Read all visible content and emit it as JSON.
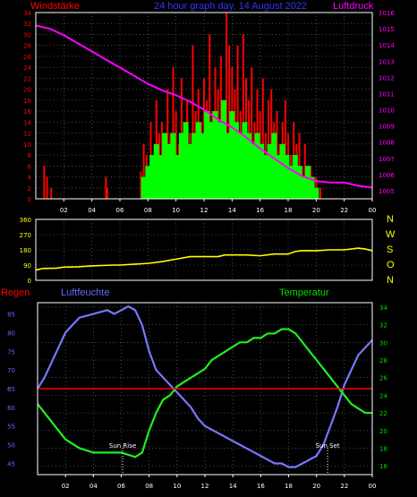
{
  "title": "24 hour graph day, 14 August 2022",
  "colors": {
    "wind": "#ff0000",
    "gust": "#00ff00",
    "pressure": "#ff00ff",
    "direction": "#ffff00",
    "humidity": "#7777ff",
    "temperature": "#22ee22",
    "rain": "#ff0000",
    "axis": "#ffffff",
    "grid": "#777777",
    "tick_wind": "#ff0000",
    "tick_humidity": "#6666ff",
    "tick_temperature": "#00dd00",
    "compass": "#ffff00"
  },
  "labels": {
    "wind": "Windstärke",
    "pressure": "Luftdruck",
    "rain": "Regen",
    "humidity": "Luftfeuchte",
    "temperature": "Temperatur",
    "sunrise": "Sun Rise",
    "sunset": "Sun Set",
    "rain_zero": "0"
  },
  "compass": [
    "N",
    "W",
    "S",
    "O",
    "N"
  ],
  "chart_data": [
    {
      "type": "bar",
      "name": "wind",
      "x_ticks": [
        "02",
        "04",
        "06",
        "08",
        "10",
        "12",
        "14",
        "16",
        "18",
        "20",
        "22",
        "00"
      ],
      "y_left_ticks": [
        0,
        2,
        4,
        6,
        8,
        10,
        12,
        14,
        16,
        18,
        20,
        22,
        24,
        26,
        28,
        30,
        32,
        34
      ],
      "y_left_range": [
        0,
        34
      ],
      "y_right_ticks": [
        1005,
        1006,
        1007,
        1008,
        1009,
        1010,
        1011,
        1012,
        1013,
        1014,
        1015,
        1016
      ],
      "y_right_range": [
        1004.5,
        1016
      ],
      "x_range": [
        0,
        24
      ],
      "wind_bars": [
        [
          0.6,
          6
        ],
        [
          0.8,
          4
        ],
        [
          1.1,
          2
        ],
        [
          5.0,
          4
        ],
        [
          5.1,
          2
        ],
        [
          7.5,
          5
        ],
        [
          7.7,
          10
        ],
        [
          7.9,
          8
        ],
        [
          8.2,
          14
        ],
        [
          8.4,
          6
        ],
        [
          8.6,
          18
        ],
        [
          8.8,
          12
        ],
        [
          9.0,
          14
        ],
        [
          9.2,
          8
        ],
        [
          9.4,
          20
        ],
        [
          9.6,
          12
        ],
        [
          9.8,
          24
        ],
        [
          10.0,
          16
        ],
        [
          10.2,
          10
        ],
        [
          10.4,
          22
        ],
        [
          10.6,
          14
        ],
        [
          10.8,
          18
        ],
        [
          11.0,
          12
        ],
        [
          11.2,
          28
        ],
        [
          11.4,
          16
        ],
        [
          11.6,
          20
        ],
        [
          11.8,
          14
        ],
        [
          12.0,
          22
        ],
        [
          12.2,
          18
        ],
        [
          12.4,
          30
        ],
        [
          12.6,
          16
        ],
        [
          12.8,
          24
        ],
        [
          13.0,
          20
        ],
        [
          13.2,
          26
        ],
        [
          13.4,
          18
        ],
        [
          13.6,
          34
        ],
        [
          13.8,
          28
        ],
        [
          14.0,
          24
        ],
        [
          14.2,
          20
        ],
        [
          14.4,
          28
        ],
        [
          14.6,
          16
        ],
        [
          14.8,
          30
        ],
        [
          15.0,
          22
        ],
        [
          15.2,
          18
        ],
        [
          15.4,
          24
        ],
        [
          15.6,
          14
        ],
        [
          15.8,
          20
        ],
        [
          16.0,
          16
        ],
        [
          16.2,
          22
        ],
        [
          16.4,
          12
        ],
        [
          16.6,
          18
        ],
        [
          16.8,
          20
        ],
        [
          17.0,
          14
        ],
        [
          17.2,
          16
        ],
        [
          17.4,
          10
        ],
        [
          17.6,
          14
        ],
        [
          17.8,
          18
        ],
        [
          18.0,
          12
        ],
        [
          18.2,
          8
        ],
        [
          18.4,
          14
        ],
        [
          18.6,
          10
        ],
        [
          18.8,
          12
        ],
        [
          19.0,
          6
        ],
        [
          19.2,
          10
        ],
        [
          19.4,
          4
        ],
        [
          19.6,
          6
        ],
        [
          19.8,
          2
        ],
        [
          20.0,
          4
        ],
        [
          20.3,
          2
        ]
      ],
      "gust_bars": [
        [
          7.7,
          4
        ],
        [
          8.0,
          6
        ],
        [
          8.3,
          8
        ],
        [
          8.6,
          10
        ],
        [
          8.9,
          8
        ],
        [
          9.2,
          12
        ],
        [
          9.5,
          10
        ],
        [
          9.8,
          12
        ],
        [
          10.1,
          8
        ],
        [
          10.4,
          12
        ],
        [
          10.7,
          14
        ],
        [
          11.0,
          10
        ],
        [
          11.3,
          12
        ],
        [
          11.6,
          14
        ],
        [
          11.9,
          12
        ],
        [
          12.2,
          16
        ],
        [
          12.5,
          14
        ],
        [
          12.8,
          16
        ],
        [
          13.1,
          14
        ],
        [
          13.4,
          18
        ],
        [
          13.7,
          12
        ],
        [
          14.0,
          16
        ],
        [
          14.3,
          14
        ],
        [
          14.6,
          12
        ],
        [
          14.9,
          14
        ],
        [
          15.2,
          12
        ],
        [
          15.5,
          10
        ],
        [
          15.8,
          12
        ],
        [
          16.1,
          10
        ],
        [
          16.4,
          8
        ],
        [
          16.7,
          10
        ],
        [
          17.0,
          12
        ],
        [
          17.3,
          8
        ],
        [
          17.6,
          10
        ],
        [
          17.9,
          8
        ],
        [
          18.2,
          6
        ],
        [
          18.5,
          8
        ],
        [
          18.8,
          6
        ],
        [
          19.1,
          4
        ],
        [
          19.4,
          6
        ],
        [
          19.7,
          4
        ],
        [
          20.0,
          2
        ]
      ],
      "pressure": [
        [
          0,
          1015.2
        ],
        [
          1,
          1015.0
        ],
        [
          2,
          1014.6
        ],
        [
          3,
          1014.1
        ],
        [
          4,
          1013.6
        ],
        [
          5,
          1013.1
        ],
        [
          6,
          1012.6
        ],
        [
          7,
          1012.1
        ],
        [
          8,
          1011.6
        ],
        [
          9,
          1011.2
        ],
        [
          10,
          1010.9
        ],
        [
          11,
          1010.5
        ],
        [
          12,
          1010.0
        ],
        [
          13,
          1009.4
        ],
        [
          14,
          1008.9
        ],
        [
          15,
          1008.3
        ],
        [
          16,
          1007.6
        ],
        [
          17,
          1007.0
        ],
        [
          18,
          1006.4
        ],
        [
          19,
          1005.9
        ],
        [
          20,
          1005.6
        ],
        [
          21,
          1005.5
        ],
        [
          22,
          1005.5
        ],
        [
          23,
          1005.3
        ],
        [
          24,
          1005.2
        ]
      ]
    },
    {
      "type": "line",
      "name": "direction",
      "y_ticks": [
        0,
        90,
        180,
        270,
        360
      ],
      "y_range": [
        0,
        360
      ],
      "x_range": [
        0,
        24
      ],
      "points": [
        [
          0,
          60
        ],
        [
          0.5,
          70
        ],
        [
          1.5,
          72
        ],
        [
          2.0,
          78
        ],
        [
          3.0,
          80
        ],
        [
          4.0,
          85
        ],
        [
          5.5,
          90
        ],
        [
          6.0,
          90
        ],
        [
          7.0,
          95
        ],
        [
          8.0,
          100
        ],
        [
          9.0,
          110
        ],
        [
          10.0,
          125
        ],
        [
          11.0,
          140
        ],
        [
          12.0,
          140
        ],
        [
          13.0,
          140
        ],
        [
          13.5,
          150
        ],
        [
          14.0,
          150
        ],
        [
          15.0,
          150
        ],
        [
          16.0,
          145
        ],
        [
          17.0,
          155
        ],
        [
          18.0,
          155
        ],
        [
          18.5,
          170
        ],
        [
          19.0,
          175
        ],
        [
          20.0,
          175
        ],
        [
          21.0,
          180
        ],
        [
          22.0,
          180
        ],
        [
          23.0,
          190
        ],
        [
          23.5,
          185
        ],
        [
          24.0,
          175
        ]
      ]
    },
    {
      "type": "line",
      "name": "humidity_temperature",
      "x_range": [
        0,
        24
      ],
      "y_left_ticks": [
        45,
        50,
        55,
        60,
        65,
        70,
        75,
        80,
        85
      ],
      "y_left_range": [
        42,
        88
      ],
      "y_right_ticks": [
        16,
        18,
        20,
        22,
        24,
        26,
        28,
        30,
        32,
        34
      ],
      "y_right_range": [
        15,
        34.5
      ],
      "humidity": [
        [
          0,
          65
        ],
        [
          0.5,
          68
        ],
        [
          1,
          72
        ],
        [
          1.5,
          76
        ],
        [
          2,
          80
        ],
        [
          2.5,
          82
        ],
        [
          3,
          84
        ],
        [
          4,
          85
        ],
        [
          5,
          86
        ],
        [
          5.5,
          85
        ],
        [
          6,
          86
        ],
        [
          6.5,
          87
        ],
        [
          7,
          86
        ],
        [
          7.5,
          82
        ],
        [
          8,
          75
        ],
        [
          8.5,
          70
        ],
        [
          9,
          68
        ],
        [
          9.5,
          66
        ],
        [
          10,
          64
        ],
        [
          10.5,
          62
        ],
        [
          11,
          60
        ],
        [
          11.5,
          57
        ],
        [
          12,
          55
        ],
        [
          12.5,
          54
        ],
        [
          13,
          53
        ],
        [
          13.5,
          52
        ],
        [
          14,
          51
        ],
        [
          14.5,
          50
        ],
        [
          15,
          49
        ],
        [
          15.5,
          48
        ],
        [
          16,
          47
        ],
        [
          16.5,
          46
        ],
        [
          17,
          45
        ],
        [
          17.5,
          45
        ],
        [
          18,
          44
        ],
        [
          18.5,
          44
        ],
        [
          19,
          45
        ],
        [
          19.5,
          46
        ],
        [
          20,
          47
        ],
        [
          20.5,
          50
        ],
        [
          21,
          55
        ],
        [
          21.5,
          60
        ],
        [
          22,
          66
        ],
        [
          22.5,
          70
        ],
        [
          23,
          74
        ],
        [
          23.5,
          76
        ],
        [
          24,
          78
        ]
      ],
      "temperature": [
        [
          0,
          23
        ],
        [
          0.5,
          22
        ],
        [
          1,
          21
        ],
        [
          1.5,
          20
        ],
        [
          2,
          19
        ],
        [
          2.5,
          18.5
        ],
        [
          3,
          18
        ],
        [
          4,
          17.5
        ],
        [
          5,
          17.5
        ],
        [
          6,
          17.5
        ],
        [
          7,
          17
        ],
        [
          7.5,
          17.5
        ],
        [
          8,
          20
        ],
        [
          8.5,
          22
        ],
        [
          9,
          23.5
        ],
        [
          9.5,
          24
        ],
        [
          10,
          25
        ],
        [
          10.5,
          25.5
        ],
        [
          11,
          26
        ],
        [
          11.5,
          26.5
        ],
        [
          12,
          27
        ],
        [
          12.5,
          28
        ],
        [
          13,
          28.5
        ],
        [
          13.5,
          29
        ],
        [
          14,
          29.5
        ],
        [
          14.5,
          30
        ],
        [
          15,
          30
        ],
        [
          15.5,
          30.5
        ],
        [
          16,
          30.5
        ],
        [
          16.5,
          31
        ],
        [
          17,
          31
        ],
        [
          17.5,
          31.5
        ],
        [
          18,
          31.5
        ],
        [
          18.5,
          31
        ],
        [
          19,
          30
        ],
        [
          19.5,
          29
        ],
        [
          20,
          28
        ],
        [
          20.5,
          27
        ],
        [
          21,
          26
        ],
        [
          21.5,
          25
        ],
        [
          22,
          24
        ],
        [
          22.5,
          23
        ],
        [
          23,
          22.5
        ],
        [
          23.5,
          22
        ],
        [
          24,
          22
        ]
      ],
      "rain_zero_value": 65,
      "sunrise_x": 6.1,
      "sunset_x": 20.8
    }
  ]
}
